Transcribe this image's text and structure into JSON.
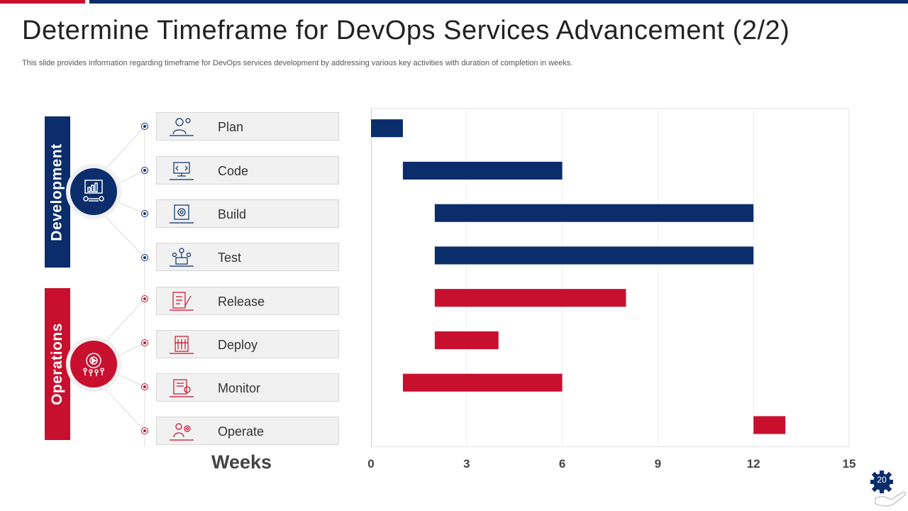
{
  "title": "Determine Timeframe for DevOps Services Advancement (2/2)",
  "subtitle": "This slide provides information regarding timeframe for DevOps services development by addressing various key activities with duration of completion in weeks.",
  "groups": {
    "development": {
      "label": "Development",
      "color": "#0b2d6b"
    },
    "operations": {
      "label": "Operations",
      "color": "#c8102e"
    }
  },
  "stages": [
    {
      "label": "Plan",
      "group": "development",
      "icon": "user-gear-icon"
    },
    {
      "label": "Code",
      "group": "development",
      "icon": "monitor-code-icon"
    },
    {
      "label": "Build",
      "group": "development",
      "icon": "gear-box-icon"
    },
    {
      "label": "Test",
      "group": "development",
      "icon": "network-test-icon"
    },
    {
      "label": "Release",
      "group": "operations",
      "icon": "checklist-pen-icon"
    },
    {
      "label": "Deploy",
      "group": "operations",
      "icon": "building-deploy-icon"
    },
    {
      "label": "Monitor",
      "group": "operations",
      "icon": "monitor-report-icon"
    },
    {
      "label": "Operate",
      "group": "operations",
      "icon": "operator-gear-icon"
    }
  ],
  "chart_data": {
    "type": "bar",
    "orientation": "horizontal-gantt",
    "categories": [
      "Plan",
      "Code",
      "Build",
      "Test",
      "Release",
      "Deploy",
      "Monitor",
      "Operate"
    ],
    "start_week": [
      0,
      1,
      2,
      2,
      2,
      2,
      1,
      12
    ],
    "end_week": [
      1,
      6,
      12,
      12,
      8,
      4,
      6,
      13
    ],
    "groups": [
      "development",
      "development",
      "development",
      "development",
      "operations",
      "operations",
      "operations",
      "operations"
    ],
    "xlabel": "Weeks",
    "xlim": [
      0,
      15
    ],
    "xticks": [
      "0",
      "3",
      "6",
      "9",
      "12",
      "15"
    ],
    "grid": true
  },
  "page_number": "20"
}
